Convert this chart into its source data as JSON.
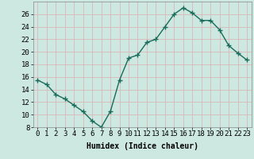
{
  "x": [
    0,
    1,
    2,
    3,
    4,
    5,
    6,
    7,
    8,
    9,
    10,
    11,
    12,
    13,
    14,
    15,
    16,
    17,
    18,
    19,
    20,
    21,
    22,
    23
  ],
  "y": [
    15.5,
    14.8,
    13.2,
    12.5,
    11.5,
    10.5,
    9.0,
    8.0,
    10.5,
    15.5,
    19.0,
    19.5,
    21.5,
    22.0,
    24.0,
    26.0,
    27.0,
    26.2,
    25.0,
    25.0,
    23.5,
    21.0,
    19.8,
    18.7
  ],
  "line_color": "#1a6b5a",
  "marker": "+",
  "marker_size": 4,
  "marker_linewidth": 1.0,
  "bg_color": "#cce8e0",
  "grid_color": "#b8d8d0",
  "xlabel": "Humidex (Indice chaleur)",
  "ylim": [
    8,
    28
  ],
  "yticks": [
    8,
    10,
    12,
    14,
    16,
    18,
    20,
    22,
    24,
    26
  ],
  "xlim": [
    -0.5,
    23.5
  ],
  "xticks": [
    0,
    1,
    2,
    3,
    4,
    5,
    6,
    7,
    8,
    9,
    10,
    11,
    12,
    13,
    14,
    15,
    16,
    17,
    18,
    19,
    20,
    21,
    22,
    23
  ],
  "xlabel_fontsize": 7,
  "tick_fontsize": 6.5,
  "line_width": 1.0
}
